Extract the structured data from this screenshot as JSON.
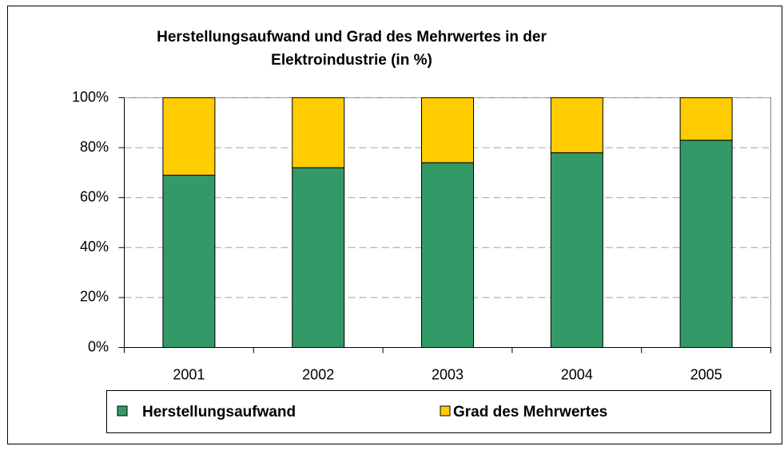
{
  "chart_data": {
    "type": "stacked_bar",
    "title": [
      "Herstellungsaufwand und Grad des Mehrwertes in der",
      "Elektroindustrie (in %)"
    ],
    "categories": [
      "2001",
      "2002",
      "2003",
      "2004",
      "2005"
    ],
    "series": [
      {
        "name": "Herstellungsaufwand",
        "color": "#339966",
        "values": [
          69,
          72,
          74,
          78,
          83
        ]
      },
      {
        "name": "Grad des Mehrwertes",
        "color": "#ffcc00",
        "values": [
          31,
          28,
          26,
          22,
          17
        ]
      }
    ],
    "ylim": [
      0,
      100
    ],
    "yticks": [
      {
        "value": 0,
        "label": "0%"
      },
      {
        "value": 20,
        "label": "20%"
      },
      {
        "value": 40,
        "label": "40%"
      },
      {
        "value": 60,
        "label": "60%"
      },
      {
        "value": 80,
        "label": "80%"
      },
      {
        "value": 100,
        "label": "100%"
      }
    ],
    "grid": true,
    "legend": "bottom"
  }
}
